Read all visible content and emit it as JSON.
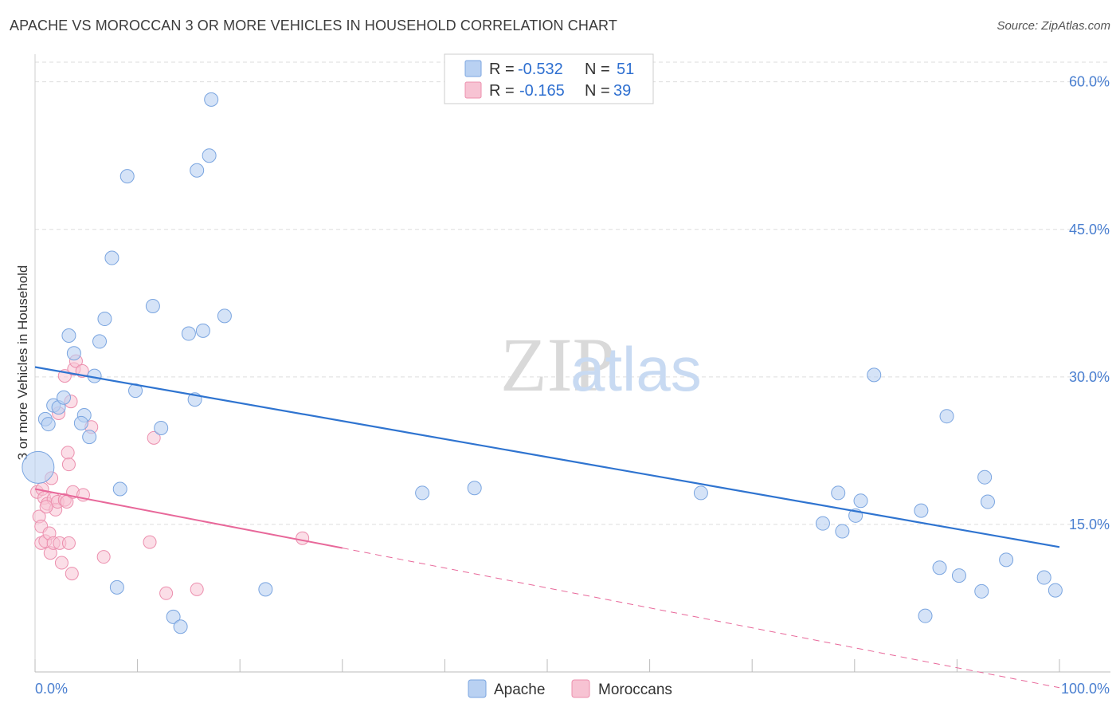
{
  "title": "APACHE VS MOROCCAN 3 OR MORE VEHICLES IN HOUSEHOLD CORRELATION CHART",
  "source": "Source: ZipAtlas.com",
  "watermark": {
    "zip": "ZIP",
    "atlas": "atlas"
  },
  "colors": {
    "apache_fill": "#b9d1f2",
    "apache_stroke": "#7aa5e0",
    "apache_line": "#2f74d0",
    "moroccan_fill": "#f7c3d3",
    "moroccan_stroke": "#ec8fae",
    "moroccan_line": "#e8689a",
    "grid": "#dddddd",
    "axis_text": "#4a7fd0"
  },
  "legend": {
    "r_label": "R =",
    "n_label": "N =",
    "apache": {
      "r": "-0.532",
      "n": "51"
    },
    "moroccan": {
      "r": "-0.165",
      "n": "39"
    }
  },
  "chart_data": {
    "type": "scatter",
    "title": "APACHE VS MOROCCAN 3 OR MORE VEHICLES IN HOUSEHOLD CORRELATION CHART",
    "xlabel": "",
    "ylabel": "3 or more Vehicles in Household",
    "xlim": [
      0,
      100
    ],
    "ylim": [
      0,
      62
    ],
    "x_tick_labels": [
      "0.0%",
      "100.0%"
    ],
    "y_ticks": [
      15,
      30,
      45,
      60
    ],
    "y_tick_labels": [
      "15.0%",
      "30.0%",
      "45.0%",
      "60.0%"
    ],
    "legend_position": "top-center",
    "series": [
      {
        "name": "Apache",
        "points": [
          [
            0.3,
            20.8
          ],
          [
            1.0,
            25.7
          ],
          [
            1.3,
            25.2
          ],
          [
            1.8,
            27.1
          ],
          [
            2.3,
            26.9
          ],
          [
            2.8,
            27.9
          ],
          [
            3.3,
            34.2
          ],
          [
            3.8,
            32.4
          ],
          [
            4.8,
            26.1
          ],
          [
            4.5,
            25.3
          ],
          [
            5.3,
            23.9
          ],
          [
            5.8,
            30.1
          ],
          [
            6.3,
            33.6
          ],
          [
            6.8,
            35.9
          ],
          [
            7.5,
            42.1
          ],
          [
            8.0,
            8.6
          ],
          [
            8.3,
            18.6
          ],
          [
            9.0,
            50.4
          ],
          [
            9.8,
            28.6
          ],
          [
            11.5,
            37.2
          ],
          [
            12.3,
            24.8
          ],
          [
            13.5,
            5.6
          ],
          [
            14.2,
            4.6
          ],
          [
            15.0,
            34.4
          ],
          [
            15.6,
            27.7
          ],
          [
            15.8,
            51.0
          ],
          [
            16.4,
            34.7
          ],
          [
            17.0,
            52.5
          ],
          [
            17.2,
            58.2
          ],
          [
            18.5,
            36.2
          ],
          [
            22.5,
            8.4
          ],
          [
            37.8,
            18.2
          ],
          [
            42.9,
            18.7
          ],
          [
            65.0,
            18.2
          ],
          [
            76.9,
            15.1
          ],
          [
            78.4,
            18.2
          ],
          [
            78.8,
            14.3
          ],
          [
            80.1,
            15.9
          ],
          [
            80.6,
            17.4
          ],
          [
            81.9,
            30.2
          ],
          [
            86.5,
            16.4
          ],
          [
            86.9,
            5.7
          ],
          [
            88.3,
            10.6
          ],
          [
            89.0,
            26.0
          ],
          [
            90.2,
            9.8
          ],
          [
            92.4,
            8.2
          ],
          [
            92.7,
            19.8
          ],
          [
            93.0,
            17.3
          ],
          [
            94.8,
            11.4
          ],
          [
            98.5,
            9.6
          ],
          [
            99.6,
            8.3
          ]
        ]
      },
      {
        "name": "Moroccans",
        "points": [
          [
            0.2,
            18.3
          ],
          [
            0.4,
            15.8
          ],
          [
            0.6,
            14.8
          ],
          [
            0.6,
            13.1
          ],
          [
            0.7,
            18.6
          ],
          [
            0.9,
            17.7
          ],
          [
            1.0,
            13.3
          ],
          [
            1.2,
            17.1
          ],
          [
            1.4,
            14.1
          ],
          [
            1.5,
            12.1
          ],
          [
            1.6,
            19.7
          ],
          [
            1.8,
            17.6
          ],
          [
            1.8,
            13.1
          ],
          [
            2.0,
            16.5
          ],
          [
            2.2,
            17.3
          ],
          [
            2.4,
            13.1
          ],
          [
            2.6,
            11.1
          ],
          [
            2.9,
            17.5
          ],
          [
            2.9,
            30.1
          ],
          [
            3.1,
            17.3
          ],
          [
            3.2,
            22.3
          ],
          [
            3.3,
            13.1
          ],
          [
            3.3,
            21.1
          ],
          [
            3.5,
            27.5
          ],
          [
            3.6,
            10.0
          ],
          [
            3.7,
            18.3
          ],
          [
            3.8,
            30.8
          ],
          [
            4.0,
            31.6
          ],
          [
            4.6,
            30.6
          ],
          [
            4.7,
            18.0
          ],
          [
            5.5,
            24.9
          ],
          [
            6.7,
            11.7
          ],
          [
            11.2,
            13.2
          ],
          [
            11.6,
            23.8
          ],
          [
            12.8,
            8.0
          ],
          [
            15.8,
            8.4
          ],
          [
            26.1,
            13.6
          ],
          [
            1.1,
            16.8
          ],
          [
            2.3,
            26.3
          ]
        ]
      }
    ],
    "trend_lines": [
      {
        "series": "Apache",
        "x": [
          0,
          100
        ],
        "y": [
          31.0,
          12.7
        ],
        "style": "solid"
      },
      {
        "series": "Moroccans",
        "x": [
          0,
          30
        ],
        "y": [
          18.6,
          12.6
        ],
        "style": "solid"
      },
      {
        "series": "Moroccans",
        "x": [
          30,
          100
        ],
        "y": [
          12.6,
          -1.6
        ],
        "style": "dashed"
      }
    ]
  },
  "bottom_legend": {
    "apache": "Apache",
    "moroccans": "Moroccans"
  }
}
